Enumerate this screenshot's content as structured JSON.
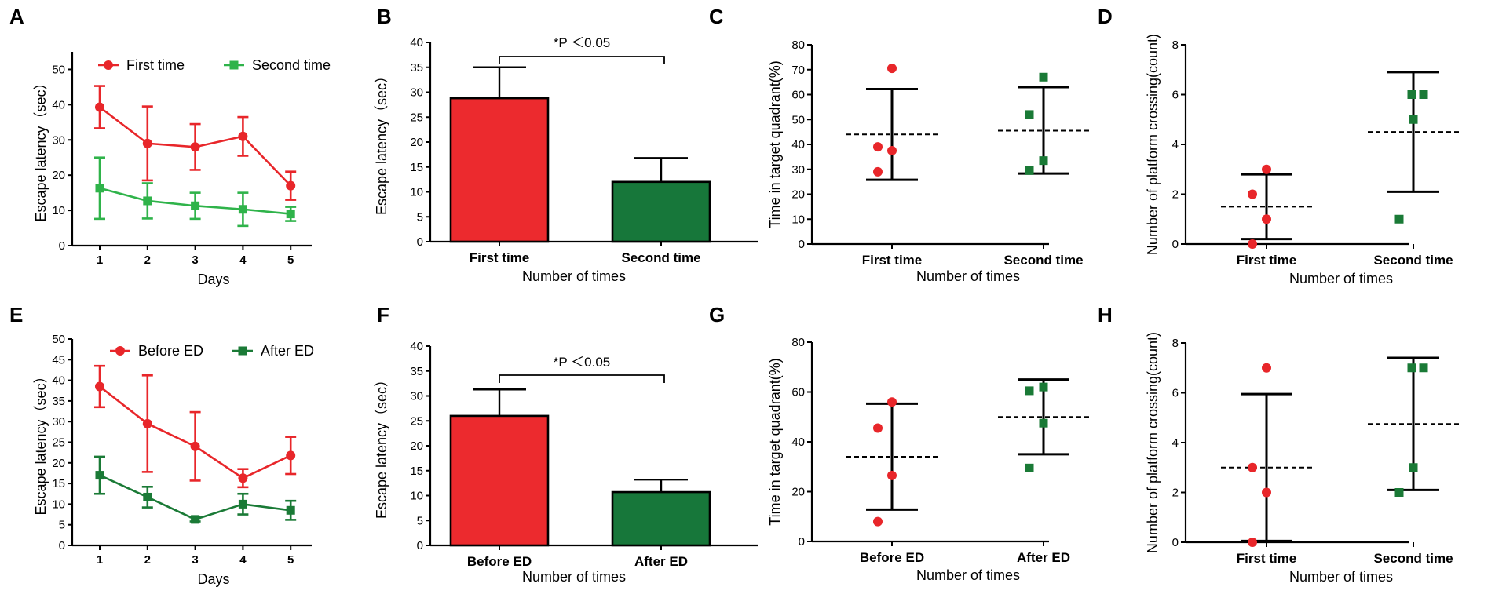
{
  "colors": {
    "red": "#e8262a",
    "green_light": "#2fb34a",
    "green_dark": "#1a7a36",
    "bar_red": "#ec2a2e",
    "bar_green": "#17773a"
  },
  "chart_data": [
    {
      "panel": "A",
      "type": "line",
      "title": "",
      "xlabel": "Days",
      "ylabel": "Escape latency（sec）",
      "categories": [
        "1",
        "2",
        "3",
        "4",
        "5"
      ],
      "ylim": [
        0,
        55
      ],
      "yticks": [
        "0",
        "10",
        "20",
        "30",
        "40",
        "50"
      ],
      "series": [
        {
          "name": "First time",
          "color": "red",
          "marker": "circle",
          "values": [
            39.3,
            29.0,
            28.0,
            31.0,
            17.0
          ],
          "errors": [
            6.0,
            10.5,
            6.5,
            5.5,
            4.0
          ]
        },
        {
          "name": "Second time",
          "color": "green_light",
          "marker": "square",
          "values": [
            16.3,
            12.7,
            11.3,
            10.3,
            9.0
          ],
          "errors": [
            8.7,
            5.0,
            3.7,
            4.7,
            2.0
          ]
        }
      ]
    },
    {
      "panel": "B",
      "type": "bar",
      "title": "",
      "xlabel": "Number of times",
      "ylabel": "Escape latency（sec）",
      "categories": [
        "First time",
        "Second time"
      ],
      "values": [
        28.8,
        12.0
      ],
      "errors": [
        6.2,
        4.8
      ],
      "colors": [
        "bar_red",
        "bar_green"
      ],
      "ylim": [
        0,
        40
      ],
      "yticks": [
        "0",
        "5",
        "10",
        "15",
        "20",
        "25",
        "30",
        "35",
        "40"
      ],
      "significance": "*P ＜0.05"
    },
    {
      "panel": "C",
      "type": "scatter",
      "title": "",
      "xlabel": "Number of times",
      "ylabel": "Time in target quadrant(%)",
      "categories": [
        "First time",
        "Second time"
      ],
      "ylim": [
        0,
        80
      ],
      "yticks": [
        "0",
        "10",
        "20",
        "30",
        "40",
        "50",
        "60",
        "70",
        "80"
      ],
      "groups": [
        {
          "points": [
            70.5,
            39.0,
            37.5,
            29.0
          ],
          "mean": 44.0,
          "sd_low": 25.8,
          "sd_high": 62.2,
          "color": "red",
          "marker": "circle"
        },
        {
          "points": [
            67.0,
            52.0,
            33.5,
            29.5
          ],
          "mean": 45.5,
          "sd_low": 28.3,
          "sd_high": 63.0,
          "color": "green_dark",
          "marker": "square"
        }
      ]
    },
    {
      "panel": "D",
      "type": "scatter",
      "title": "",
      "xlabel": "Number of times",
      "ylabel": "Number of platform crossing(count)",
      "categories": [
        "First time",
        "Second time"
      ],
      "ylim": [
        0,
        8
      ],
      "yticks": [
        "0",
        "2",
        "4",
        "6",
        "8"
      ],
      "groups": [
        {
          "points": [
            3,
            2,
            1,
            0
          ],
          "mean": 1.5,
          "sd_low": 0.2,
          "sd_high": 2.8,
          "color": "red",
          "marker": "circle"
        },
        {
          "points": [
            6,
            6,
            5,
            1
          ],
          "mean": 4.5,
          "sd_low": 2.1,
          "sd_high": 6.9,
          "color": "green_dark",
          "marker": "square"
        }
      ]
    },
    {
      "panel": "E",
      "type": "line",
      "title": "",
      "xlabel": "Days",
      "ylabel": "Escape latency（sec）",
      "categories": [
        "1",
        "2",
        "3",
        "4",
        "5"
      ],
      "ylim": [
        0,
        50
      ],
      "yticks": [
        "0",
        "5",
        "10",
        "15",
        "20",
        "25",
        "30",
        "35",
        "40",
        "45",
        "50"
      ],
      "series": [
        {
          "name": "Before ED",
          "color": "red",
          "marker": "circle",
          "values": [
            38.5,
            29.5,
            24.0,
            16.3,
            21.8
          ],
          "errors": [
            5.0,
            11.7,
            8.3,
            2.2,
            4.5
          ]
        },
        {
          "name": "After ED",
          "color": "green_dark",
          "marker": "square",
          "values": [
            17.0,
            11.7,
            6.3,
            10.0,
            8.5
          ],
          "errors": [
            4.5,
            2.5,
            0.5,
            2.5,
            2.3
          ]
        }
      ]
    },
    {
      "panel": "F",
      "type": "bar",
      "title": "",
      "xlabel": "Number of times",
      "ylabel": "Escape latency（sec）",
      "categories": [
        "Before ED",
        "After ED"
      ],
      "values": [
        26.0,
        10.7
      ],
      "errors": [
        5.3,
        2.5
      ],
      "colors": [
        "bar_red",
        "bar_green"
      ],
      "ylim": [
        0,
        40
      ],
      "yticks": [
        "0",
        "5",
        "10",
        "15",
        "20",
        "25",
        "30",
        "35",
        "40"
      ],
      "significance": "*P ＜0.05"
    },
    {
      "panel": "G",
      "type": "scatter",
      "title": "",
      "xlabel": "Number of times",
      "ylabel": "Time in target quadrant(%)",
      "categories": [
        "Before ED",
        "After ED"
      ],
      "ylim": [
        0,
        80
      ],
      "yticks": [
        "0",
        "20",
        "40",
        "60",
        "80"
      ],
      "groups": [
        {
          "points": [
            56.0,
            45.5,
            26.5,
            8.0
          ],
          "mean": 34.0,
          "sd_low": 12.8,
          "sd_high": 55.3,
          "color": "red",
          "marker": "circle"
        },
        {
          "points": [
            62.0,
            60.5,
            47.5,
            29.5
          ],
          "mean": 50.0,
          "sd_low": 35.0,
          "sd_high": 65.0,
          "color": "green_dark",
          "marker": "square"
        }
      ]
    },
    {
      "panel": "H",
      "type": "scatter",
      "title": "",
      "xlabel": "Number of times",
      "ylabel": "Number of platform crossing(count)",
      "categories": [
        "First time",
        "Second time"
      ],
      "ylim": [
        0,
        8
      ],
      "yticks": [
        "0",
        "2",
        "4",
        "6",
        "8"
      ],
      "groups": [
        {
          "points": [
            7,
            3,
            2,
            0
          ],
          "mean": 3.0,
          "sd_low": 0.05,
          "sd_high": 5.95,
          "color": "red",
          "marker": "circle"
        },
        {
          "points": [
            7,
            7,
            3,
            2
          ],
          "mean": 4.75,
          "sd_low": 2.1,
          "sd_high": 7.4,
          "color": "green_dark",
          "marker": "square"
        }
      ]
    }
  ]
}
